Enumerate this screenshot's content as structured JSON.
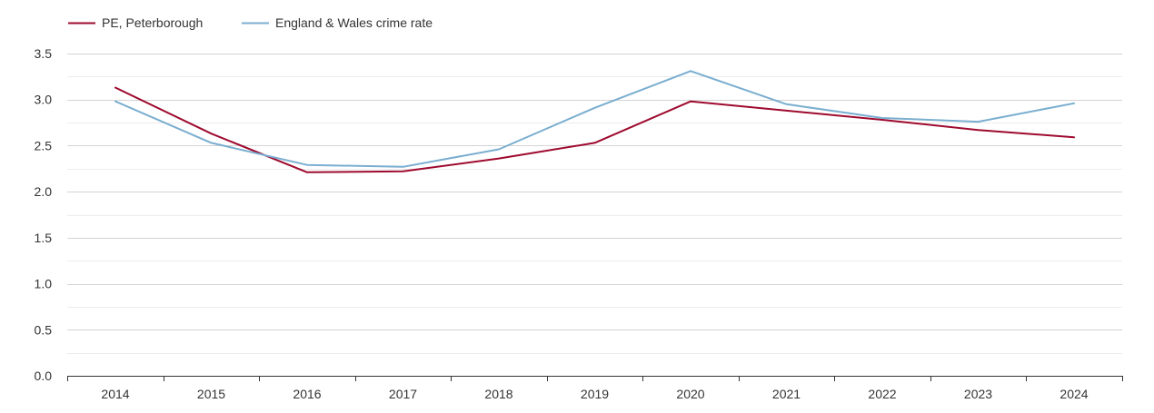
{
  "chart_data": {
    "type": "line",
    "title": "",
    "xlabel": "",
    "ylabel": "",
    "x": [
      "2014",
      "2015",
      "2016",
      "2017",
      "2018",
      "2019",
      "2020",
      "2021",
      "2022",
      "2023",
      "2024"
    ],
    "ylim": [
      0,
      3.5
    ],
    "yticks": [
      "0.0",
      "0.5",
      "1.0",
      "1.5",
      "2.0",
      "2.5",
      "3.0",
      "3.5"
    ],
    "grid": true,
    "legend_position": "top-left",
    "series": [
      {
        "name": "PE, Peterborough",
        "color": "#9e0a2e",
        "values": [
          3.13,
          2.63,
          2.21,
          2.22,
          2.36,
          2.53,
          2.98,
          2.88,
          2.78,
          2.67,
          2.59
        ]
      },
      {
        "name": "England & Wales crime rate",
        "color": "#7aaed0",
        "values": [
          2.98,
          2.53,
          2.29,
          2.27,
          2.46,
          2.91,
          3.31,
          2.95,
          2.8,
          2.76,
          2.96
        ]
      }
    ]
  }
}
